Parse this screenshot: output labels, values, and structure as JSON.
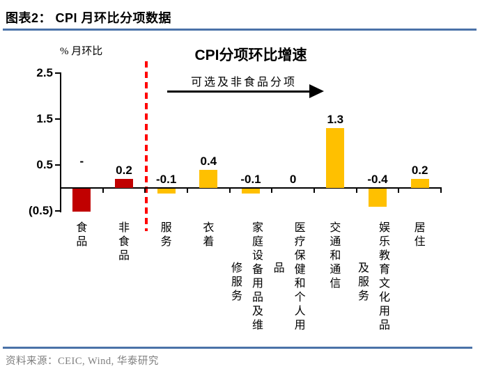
{
  "page": {
    "rule_color": "#4a72a8",
    "background": "#ffffff"
  },
  "header": {
    "title": "图表2：  CPI 月环比分项数据"
  },
  "footer": {
    "source": "资料来源：CEIC, Wind, 华泰研究"
  },
  "chart_data": {
    "type": "bar",
    "title": "CPI分项环比增速",
    "ylabel": "% 月环比",
    "annotation": "可选及非食品分项",
    "annotation_arrow": "right-arrow",
    "categories": [
      "食品",
      "非食品",
      "服务",
      "衣着",
      "家庭设备用品及维修服务",
      "医疗保健和个人用品",
      "交通和通信",
      "娱乐教育文化用品及服务",
      "居住"
    ],
    "series": [
      {
        "name": "CPI分项环比增速",
        "values": [
          -0.5,
          0.2,
          -0.1,
          0.4,
          -0.1,
          0,
          1.3,
          -0.4,
          0.2
        ],
        "value_labels": [
          "-",
          "0.2",
          "-0.1",
          "0.4",
          "-0.1",
          "0",
          "1.3",
          "-0.4",
          "0.2"
        ],
        "bar_colors": [
          "#c00000",
          "#c00000",
          "#ffc000",
          "#ffc000",
          "#ffc000",
          "#ffc000",
          "#ffc000",
          "#ffc000",
          "#ffc000"
        ]
      }
    ],
    "y_ticks": [
      {
        "label": "2.5",
        "value": 2.5
      },
      {
        "label": "1.5",
        "value": 1.5
      },
      {
        "label": "0.5",
        "value": 0.5
      },
      {
        "label": "(0.5)",
        "value": -0.5
      }
    ],
    "ylim": [
      -0.5,
      2.5
    ],
    "grid": false,
    "legend": "none",
    "divider": {
      "after_category_index": 1,
      "color": "#ff0000",
      "style": "dashed"
    }
  }
}
